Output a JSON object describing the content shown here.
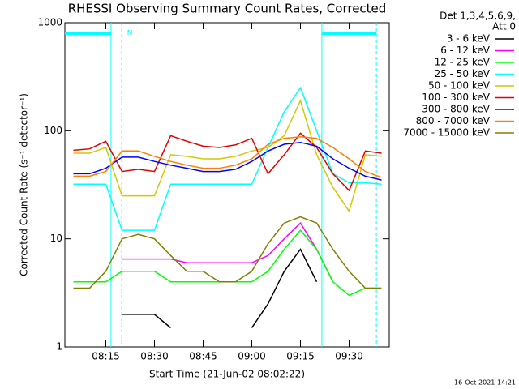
{
  "chart_data": {
    "type": "line",
    "title": "RHESSI Observing Summary Count Rates, Corrected",
    "xlabel": "Start Time (21-Jun-02 08:02:22)",
    "ylabel": "Corrected Count Rate (s⁻¹ detector⁻¹)",
    "legend_title": [
      "Det 1,3,4,5,6,9,",
      "Att 0"
    ],
    "legend": "right",
    "footer": "16-Oct-2021 14:21",
    "log_y": true,
    "ylim": [
      1,
      1000
    ],
    "yticks": [
      1,
      10,
      100,
      1000
    ],
    "xlim": [
      482.37,
      582.37
    ],
    "xticks": [
      {
        "value": 495,
        "label": "08:15"
      },
      {
        "value": 510,
        "label": "08:30"
      },
      {
        "value": 525,
        "label": "08:45"
      },
      {
        "value": 540,
        "label": "09:00"
      },
      {
        "value": 555,
        "label": "09:15"
      },
      {
        "value": 570,
        "label": "09:30"
      }
    ],
    "annotations": [
      {
        "text": "N",
        "x": 502.4
      }
    ],
    "night_intervals": [
      [
        482.37,
        496.6
      ],
      [
        561.6,
        578.4
      ]
    ],
    "vlines": [
      {
        "x": 496.6,
        "style": "solid"
      },
      {
        "x": 499.9,
        "style": "dashed"
      },
      {
        "x": 561.6,
        "style": "solid"
      },
      {
        "x": 578.4,
        "style": "dashed"
      }
    ],
    "x": [
      485,
      490,
      495,
      500,
      505,
      510,
      515,
      520,
      525,
      530,
      535,
      540,
      545,
      550,
      555,
      560,
      565,
      570,
      575,
      580
    ],
    "series": [
      {
        "name": "3 - 6 keV",
        "color": "#000000",
        "values": [
          null,
          null,
          null,
          2,
          2,
          2,
          1.5,
          null,
          null,
          null,
          null,
          1.5,
          2.5,
          5,
          8,
          4,
          null,
          null,
          null,
          null
        ]
      },
      {
        "name": "6 - 12 keV",
        "color": "#ff00ff",
        "values": [
          null,
          null,
          null,
          6.5,
          6.5,
          6.5,
          6.5,
          6,
          6,
          6,
          6,
          6,
          7,
          10,
          14,
          8,
          4,
          null,
          null,
          null
        ]
      },
      {
        "name": "12 - 25 keV",
        "color": "#00ff00",
        "values": [
          4,
          4,
          4,
          5,
          5,
          5,
          4,
          4,
          4,
          4,
          4,
          4,
          5,
          8,
          12,
          8,
          4,
          3,
          3.5,
          3.5
        ]
      },
      {
        "name": "25 - 50 keV",
        "color": "#00ffff",
        "values": [
          32,
          32,
          32,
          12,
          12,
          12,
          32,
          32,
          32,
          32,
          32,
          32,
          70,
          150,
          250,
          100,
          40,
          33,
          33,
          32
        ]
      },
      {
        "name": "50 - 100 keV",
        "color": "#d4c800",
        "values": [
          62,
          62,
          70,
          25,
          25,
          25,
          60,
          58,
          55,
          55,
          58,
          65,
          70,
          90,
          190,
          60,
          30,
          18,
          60,
          58
        ]
      },
      {
        "name": "100 - 300 keV",
        "color": "#e00000",
        "values": [
          66,
          68,
          80,
          42,
          44,
          42,
          90,
          80,
          72,
          70,
          74,
          85,
          40,
          60,
          95,
          70,
          40,
          28,
          65,
          62
        ]
      },
      {
        "name": "300 - 800 keV",
        "color": "#0000ff",
        "values": [
          40,
          40,
          45,
          57,
          57,
          52,
          48,
          45,
          42,
          42,
          44,
          52,
          65,
          75,
          78,
          72,
          55,
          45,
          38,
          35
        ]
      },
      {
        "name": "800 - 7000 keV",
        "color": "#ff8000",
        "values": [
          38,
          38,
          42,
          65,
          65,
          58,
          52,
          48,
          45,
          45,
          48,
          55,
          75,
          85,
          88,
          85,
          70,
          55,
          42,
          37
        ]
      },
      {
        "name": "7000 - 15000 keV",
        "color": "#808000",
        "values": [
          3.5,
          3.5,
          5,
          10,
          11,
          10,
          7,
          5,
          5,
          4,
          4,
          5,
          9,
          14,
          16,
          14,
          8,
          5,
          3.5,
          3.5
        ]
      }
    ]
  }
}
